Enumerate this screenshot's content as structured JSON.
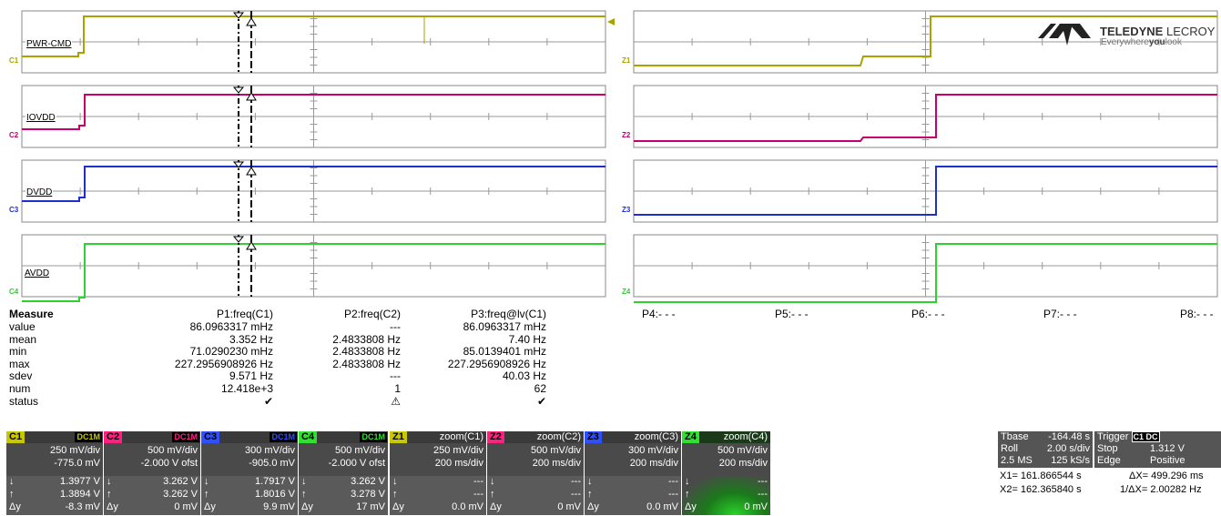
{
  "logo": {
    "brand": "TELEDYNE",
    "brand2": "LECROY",
    "slogan1": "Everywhere",
    "slogan2": "you",
    "slogan3": "look"
  },
  "traces": [
    {
      "label": "PWR-CMD",
      "num": "C1",
      "color": "#a9a300"
    },
    {
      "label": "IOVDD",
      "num": "C2",
      "color": "#c8006e"
    },
    {
      "label": "DVDD",
      "num": "C3",
      "color": "#1e2fcf"
    },
    {
      "label": "AVDD",
      "num": "C4",
      "color": "#2fd02f"
    }
  ],
  "zoom_labels": [
    "Z1",
    "Z2",
    "Z3",
    "Z4"
  ],
  "measure": {
    "title": "Measure",
    "headers": [
      "P1:freq(C1)",
      "P2:freq(C2)",
      "P3:freq@lv(C1)"
    ],
    "rows": [
      {
        "name": "value",
        "v": [
          "86.0963317 mHz",
          "---",
          "86.0963317 mHz"
        ]
      },
      {
        "name": "mean",
        "v": [
          "3.352 Hz",
          "2.4833808 Hz",
          "7.40 Hz"
        ]
      },
      {
        "name": "min",
        "v": [
          "71.0290230 mHz",
          "2.4833808 Hz",
          "85.0139401 mHz"
        ]
      },
      {
        "name": "max",
        "v": [
          "227.2956908926 Hz",
          "2.4833808 Hz",
          "227.2956908926 Hz"
        ]
      },
      {
        "name": "sdev",
        "v": [
          "9.571 Hz",
          "---",
          "40.03 Hz"
        ]
      },
      {
        "name": "num",
        "v": [
          "12.418e+3",
          "1",
          "62"
        ]
      },
      {
        "name": "status",
        "v": [
          "✔",
          "⚠",
          "✔"
        ]
      }
    ],
    "p_other": [
      "P4:- - -",
      "P5:- - -",
      "P6:- - -",
      "P7:- - -",
      "P8:- - -"
    ]
  },
  "channels": [
    {
      "tag": "C1",
      "coupling": "DC1M",
      "color": "#c8c800",
      "vdiv": "250 mV/div",
      "ofst": "-775.0 mV",
      "d1": "1.3977 V",
      "d2": "1.3894 V",
      "dy": "-8.3 mV"
    },
    {
      "tag": "C2",
      "coupling": "DC1M",
      "color": "#ff2080",
      "vdiv": "500 mV/div",
      "ofst": "-2.000 V ofst",
      "d1": "3.262 V",
      "d2": "3.262 V",
      "dy": "0 mV"
    },
    {
      "tag": "C3",
      "coupling": "DC1M",
      "color": "#3050ff",
      "vdiv": "300 mV/div",
      "ofst": "-905.0 mV",
      "d1": "1.7917 V",
      "d2": "1.8016 V",
      "dy": "9.9 mV"
    },
    {
      "tag": "C4",
      "coupling": "DC1M",
      "color": "#30e030",
      "vdiv": "500 mV/div",
      "ofst": "-2.000 V ofst",
      "d1": "3.262 V",
      "d2": "3.278 V",
      "dy": "17 mV"
    },
    {
      "tag": "Z1",
      "zoom": "zoom(C1)",
      "color": "#c8c800",
      "vdiv": "250 mV/div",
      "ofst": "200 ms/div",
      "d1": "---",
      "d2": "---",
      "dy": "0.0 mV"
    },
    {
      "tag": "Z2",
      "zoom": "zoom(C2)",
      "color": "#ff2080",
      "vdiv": "500 mV/div",
      "ofst": "200 ms/div",
      "d1": "---",
      "d2": "---",
      "dy": "0 mV"
    },
    {
      "tag": "Z3",
      "zoom": "zoom(C3)",
      "color": "#3050ff",
      "vdiv": "300 mV/div",
      "ofst": "200 ms/div",
      "d1": "---",
      "d2": "---",
      "dy": "0.0 mV"
    },
    {
      "tag": "Z4",
      "zoom": "zoom(C4)",
      "color": "#30e030",
      "vdiv": "500 mV/div",
      "ofst": "200 ms/div",
      "d1": "---",
      "d2": "---",
      "dy": "0 mV"
    }
  ],
  "timebase": {
    "tbase_label": "Tbase",
    "tbase": "-164.48 s",
    "mode": "Roll",
    "tdiv": "2.00 s/div",
    "mem": "2.5 MS",
    "rate": "125 kS/s"
  },
  "trigger": {
    "label": "Trigger",
    "badge": "C1 DC",
    "state": "Stop",
    "level": "1.312 V",
    "type": "Edge",
    "slope": "Positive"
  },
  "cursors": {
    "x1": "X1=  161.866544 s",
    "dx": "ΔX=  499.296 ms",
    "x2": "X2=  162.365840 s",
    "inv": "1/ΔX=  2.00282 Hz"
  }
}
